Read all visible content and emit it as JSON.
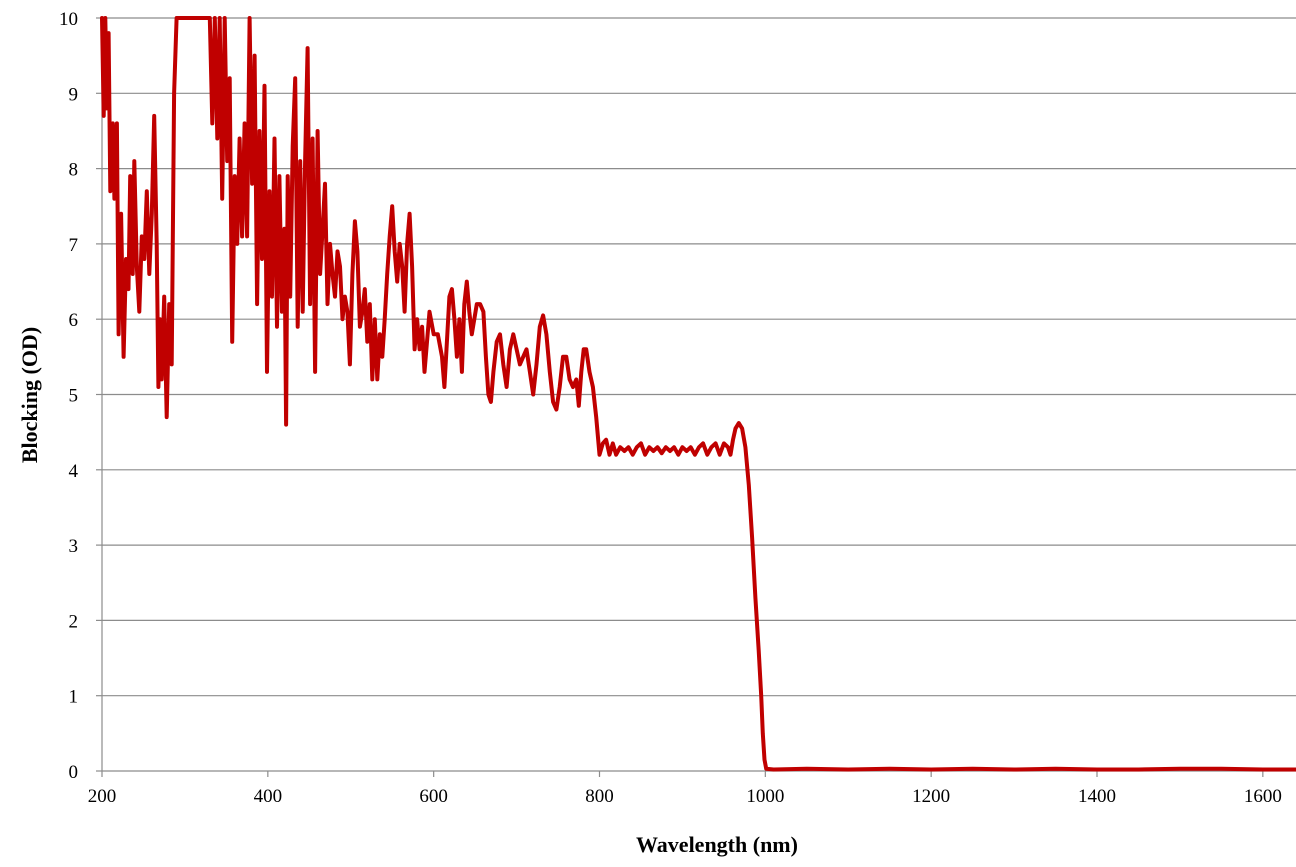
{
  "chart_data": {
    "type": "line",
    "title": "",
    "xlabel": "Wavelength (nm)",
    "ylabel": "Blocking (OD)",
    "xlim": [
      200,
      1640
    ],
    "ylim": [
      0,
      10
    ],
    "x_ticks": [
      200,
      400,
      600,
      800,
      1000,
      1200,
      1400,
      1600
    ],
    "y_ticks": [
      0,
      1,
      2,
      3,
      4,
      5,
      6,
      7,
      8,
      9,
      10
    ],
    "grid": "horizontal",
    "legend": "none",
    "line_color": "#c00000",
    "series": [
      {
        "points": [
          [
            200,
            10
          ],
          [
            202,
            8.7
          ],
          [
            204,
            10
          ],
          [
            206,
            8.8
          ],
          [
            208,
            9.8
          ],
          [
            210,
            7.7
          ],
          [
            213,
            8.6
          ],
          [
            215,
            7.6
          ],
          [
            218,
            8.6
          ],
          [
            220,
            5.8
          ],
          [
            223,
            7.4
          ],
          [
            226,
            5.5
          ],
          [
            229,
            6.8
          ],
          [
            232,
            6.4
          ],
          [
            234,
            7.9
          ],
          [
            237,
            6.6
          ],
          [
            239,
            8.1
          ],
          [
            242,
            6.7
          ],
          [
            245,
            6.1
          ],
          [
            248,
            7.1
          ],
          [
            251,
            6.8
          ],
          [
            254,
            7.7
          ],
          [
            257,
            6.6
          ],
          [
            260,
            7.4
          ],
          [
            263,
            8.7
          ],
          [
            266,
            7.0
          ],
          [
            268,
            5.1
          ],
          [
            270,
            6.0
          ],
          [
            272,
            5.2
          ],
          [
            275,
            6.3
          ],
          [
            278,
            4.7
          ],
          [
            281,
            6.2
          ],
          [
            284,
            5.4
          ],
          [
            287,
            9.0
          ],
          [
            290,
            10
          ],
          [
            295,
            10
          ],
          [
            300,
            10
          ],
          [
            310,
            10
          ],
          [
            320,
            10
          ],
          [
            330,
            10
          ],
          [
            333,
            8.6
          ],
          [
            336,
            10
          ],
          [
            339,
            8.4
          ],
          [
            342,
            10
          ],
          [
            345,
            7.6
          ],
          [
            348,
            10
          ],
          [
            351,
            8.1
          ],
          [
            354,
            9.2
          ],
          [
            357,
            5.7
          ],
          [
            360,
            7.9
          ],
          [
            363,
            7.0
          ],
          [
            366,
            8.4
          ],
          [
            369,
            7.1
          ],
          [
            372,
            8.6
          ],
          [
            375,
            7.1
          ],
          [
            378,
            10
          ],
          [
            381,
            7.8
          ],
          [
            384,
            9.5
          ],
          [
            387,
            6.2
          ],
          [
            390,
            8.5
          ],
          [
            393,
            6.8
          ],
          [
            396,
            9.1
          ],
          [
            399,
            5.3
          ],
          [
            402,
            7.7
          ],
          [
            405,
            6.3
          ],
          [
            408,
            8.4
          ],
          [
            411,
            5.9
          ],
          [
            414,
            7.9
          ],
          [
            417,
            6.1
          ],
          [
            420,
            7.2
          ],
          [
            422,
            4.6
          ],
          [
            424,
            7.9
          ],
          [
            427,
            6.3
          ],
          [
            430,
            8.3
          ],
          [
            433,
            9.2
          ],
          [
            436,
            5.9
          ],
          [
            439,
            8.1
          ],
          [
            442,
            6.1
          ],
          [
            445,
            8.1
          ],
          [
            448,
            9.6
          ],
          [
            451,
            6.2
          ],
          [
            454,
            8.4
          ],
          [
            457,
            5.3
          ],
          [
            460,
            8.5
          ],
          [
            463,
            6.6
          ],
          [
            466,
            7.2
          ],
          [
            469,
            7.8
          ],
          [
            472,
            6.2
          ],
          [
            475,
            7.0
          ],
          [
            478,
            6.6
          ],
          [
            481,
            6.3
          ],
          [
            484,
            6.9
          ],
          [
            487,
            6.7
          ],
          [
            490,
            6.0
          ],
          [
            493,
            6.3
          ],
          [
            496,
            6.1
          ],
          [
            499,
            5.4
          ],
          [
            502,
            6.6
          ],
          [
            505,
            7.3
          ],
          [
            508,
            6.9
          ],
          [
            511,
            5.9
          ],
          [
            514,
            6.1
          ],
          [
            517,
            6.4
          ],
          [
            520,
            5.7
          ],
          [
            523,
            6.2
          ],
          [
            526,
            5.2
          ],
          [
            529,
            6.0
          ],
          [
            532,
            5.2
          ],
          [
            535,
            5.8
          ],
          [
            538,
            5.5
          ],
          [
            541,
            6.0
          ],
          [
            544,
            6.6
          ],
          [
            547,
            7.1
          ],
          [
            550,
            7.5
          ],
          [
            553,
            6.9
          ],
          [
            556,
            6.5
          ],
          [
            559,
            7.0
          ],
          [
            562,
            6.7
          ],
          [
            565,
            6.1
          ],
          [
            568,
            7.0
          ],
          [
            571,
            7.4
          ],
          [
            574,
            6.7
          ],
          [
            577,
            5.6
          ],
          [
            580,
            6.0
          ],
          [
            583,
            5.6
          ],
          [
            586,
            5.9
          ],
          [
            589,
            5.3
          ],
          [
            592,
            5.7
          ],
          [
            595,
            6.1
          ],
          [
            600,
            5.8
          ],
          [
            605,
            5.8
          ],
          [
            610,
            5.5
          ],
          [
            613,
            5.1
          ],
          [
            616,
            5.7
          ],
          [
            619,
            6.3
          ],
          [
            622,
            6.4
          ],
          [
            625,
            6.0
          ],
          [
            628,
            5.5
          ],
          [
            631,
            6.0
          ],
          [
            634,
            5.3
          ],
          [
            637,
            6.2
          ],
          [
            640,
            6.5
          ],
          [
            643,
            6.1
          ],
          [
            646,
            5.8
          ],
          [
            649,
            6.0
          ],
          [
            652,
            6.2
          ],
          [
            656,
            6.2
          ],
          [
            660,
            6.1
          ],
          [
            663,
            5.5
          ],
          [
            666,
            5.0
          ],
          [
            669,
            4.9
          ],
          [
            672,
            5.3
          ],
          [
            676,
            5.7
          ],
          [
            680,
            5.8
          ],
          [
            684,
            5.4
          ],
          [
            688,
            5.1
          ],
          [
            692,
            5.6
          ],
          [
            696,
            5.8
          ],
          [
            700,
            5.6
          ],
          [
            704,
            5.4
          ],
          [
            708,
            5.5
          ],
          [
            712,
            5.6
          ],
          [
            716,
            5.3
          ],
          [
            720,
            5.0
          ],
          [
            724,
            5.4
          ],
          [
            728,
            5.9
          ],
          [
            732,
            6.05
          ],
          [
            736,
            5.8
          ],
          [
            740,
            5.3
          ],
          [
            744,
            4.9
          ],
          [
            748,
            4.8
          ],
          [
            752,
            5.1
          ],
          [
            756,
            5.5
          ],
          [
            760,
            5.5
          ],
          [
            764,
            5.2
          ],
          [
            768,
            5.1
          ],
          [
            772,
            5.2
          ],
          [
            775,
            4.85
          ],
          [
            778,
            5.3
          ],
          [
            781,
            5.6
          ],
          [
            784,
            5.6
          ],
          [
            788,
            5.3
          ],
          [
            792,
            5.1
          ],
          [
            796,
            4.7
          ],
          [
            800,
            4.2
          ],
          [
            804,
            4.35
          ],
          [
            808,
            4.4
          ],
          [
            812,
            4.2
          ],
          [
            816,
            4.35
          ],
          [
            820,
            4.2
          ],
          [
            825,
            4.3
          ],
          [
            830,
            4.25
          ],
          [
            835,
            4.3
          ],
          [
            840,
            4.2
          ],
          [
            845,
            4.3
          ],
          [
            850,
            4.35
          ],
          [
            855,
            4.2
          ],
          [
            860,
            4.3
          ],
          [
            865,
            4.25
          ],
          [
            870,
            4.3
          ],
          [
            875,
            4.22
          ],
          [
            880,
            4.3
          ],
          [
            885,
            4.25
          ],
          [
            890,
            4.3
          ],
          [
            895,
            4.2
          ],
          [
            900,
            4.3
          ],
          [
            905,
            4.25
          ],
          [
            910,
            4.3
          ],
          [
            915,
            4.2
          ],
          [
            920,
            4.3
          ],
          [
            925,
            4.35
          ],
          [
            930,
            4.2
          ],
          [
            935,
            4.3
          ],
          [
            940,
            4.35
          ],
          [
            945,
            4.2
          ],
          [
            950,
            4.35
          ],
          [
            955,
            4.3
          ],
          [
            958,
            4.2
          ],
          [
            961,
            4.4
          ],
          [
            964,
            4.55
          ],
          [
            968,
            4.62
          ],
          [
            972,
            4.55
          ],
          [
            976,
            4.3
          ],
          [
            980,
            3.8
          ],
          [
            984,
            3.1
          ],
          [
            988,
            2.3
          ],
          [
            992,
            1.6
          ],
          [
            995,
            1.0
          ],
          [
            997,
            0.5
          ],
          [
            999,
            0.15
          ],
          [
            1001,
            0.03
          ],
          [
            1010,
            0.02
          ],
          [
            1050,
            0.03
          ],
          [
            1100,
            0.02
          ],
          [
            1150,
            0.03
          ],
          [
            1200,
            0.02
          ],
          [
            1250,
            0.03
          ],
          [
            1300,
            0.02
          ],
          [
            1350,
            0.03
          ],
          [
            1400,
            0.02
          ],
          [
            1450,
            0.02
          ],
          [
            1500,
            0.03
          ],
          [
            1550,
            0.03
          ],
          [
            1600,
            0.02
          ],
          [
            1640,
            0.02
          ]
        ]
      }
    ]
  }
}
